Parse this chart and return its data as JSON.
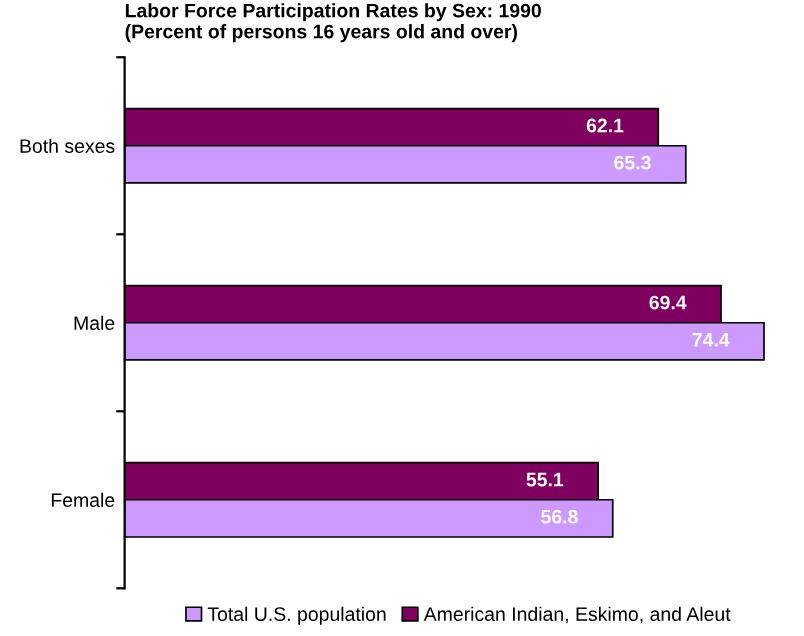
{
  "chart_data": {
    "type": "bar",
    "orientation": "horizontal",
    "title": "Labor Force Participation Rates by Sex: 1990\n(Percent of persons 16 years old and over)",
    "categories": [
      "Both sexes",
      "Male",
      "Female"
    ],
    "series": [
      {
        "name": "American Indian, Eskimo, and Aleut",
        "color": "#800060",
        "values": [
          62.1,
          69.4,
          55.1
        ]
      },
      {
        "name": "Total U.S. population",
        "color": "#cc99ff",
        "values": [
          65.3,
          74.4,
          56.8
        ]
      }
    ],
    "tick_labels": "y",
    "data_labels": true,
    "legend": "bottom",
    "grid": false
  }
}
